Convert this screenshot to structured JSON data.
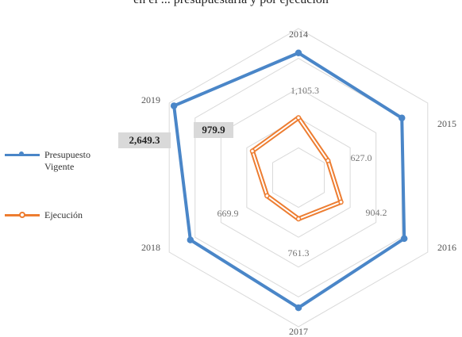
{
  "chart_data": {
    "type": "radar",
    "title": "en el ... presupuestaria y por ejecución",
    "categories": [
      "2014",
      "2015",
      "2016",
      "2017",
      "2018",
      "2019"
    ],
    "series": [
      {
        "name": "Presupuesto Vigente",
        "color": "#4a86c8",
        "values": [
          2300,
          2200,
          2250,
          2400,
          2300,
          2649.3
        ],
        "labels": [
          "",
          "",
          "",
          "",
          "",
          "2,649.3"
        ]
      },
      {
        "name": "Ejecución",
        "color": "#ed7d31",
        "values": [
          1105.3,
          627.0,
          904.2,
          761.3,
          669.9,
          979.9
        ],
        "labels": [
          "1,105.3",
          "627.0",
          "904.2",
          "761.3",
          "669.9",
          "979.9"
        ]
      }
    ],
    "rmax": 2750,
    "grid_rings": 5,
    "legend_position": "left"
  }
}
